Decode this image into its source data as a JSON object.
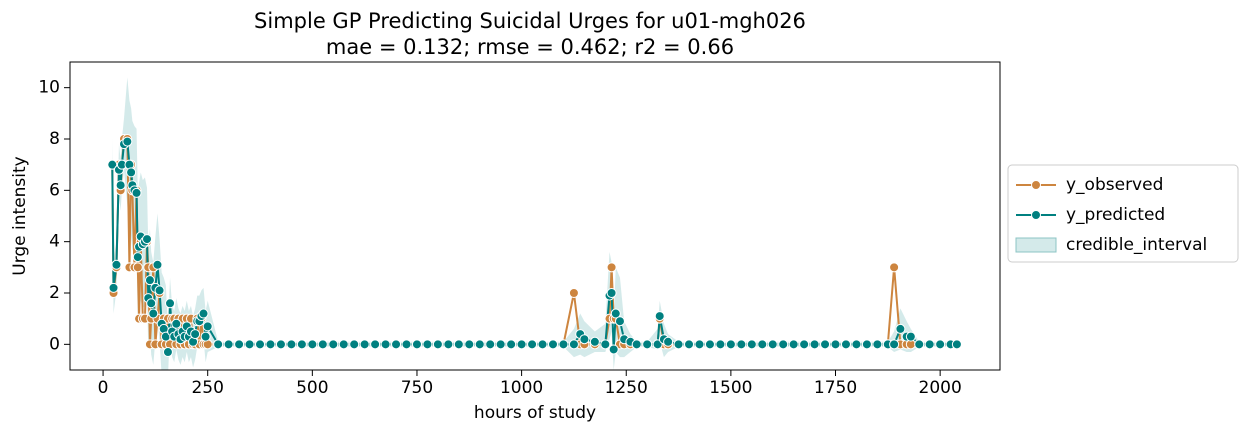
{
  "chart_data": {
    "type": "line",
    "title": "Simple GP Predicting Suicidal Urges for u01-mgh026",
    "subtitle": "mae = 0.132; rmse = 0.462; r2 = 0.66",
    "xlabel": "hours of study",
    "ylabel": "Urge intensity",
    "xlim": [
      -79,
      2143
    ],
    "ylim": [
      -1,
      11
    ],
    "xticks": [
      0,
      250,
      500,
      750,
      1000,
      1250,
      1500,
      1750,
      2000
    ],
    "yticks": [
      0,
      2,
      4,
      6,
      8,
      10
    ],
    "legend": "outside right",
    "x": [
      22,
      25,
      32,
      38,
      42,
      45,
      50,
      58,
      63,
      67,
      70,
      75,
      80,
      83,
      86,
      90,
      95,
      100,
      105,
      108,
      112,
      115,
      120,
      125,
      130,
      135,
      140,
      145,
      150,
      155,
      160,
      165,
      170,
      175,
      180,
      185,
      190,
      195,
      200,
      205,
      210,
      215,
      220,
      225,
      230,
      235,
      240,
      245,
      250,
      275,
      300,
      325,
      350,
      375,
      400,
      425,
      450,
      475,
      500,
      525,
      550,
      575,
      600,
      625,
      650,
      675,
      700,
      725,
      750,
      775,
      800,
      825,
      850,
      875,
      900,
      925,
      950,
      975,
      1000,
      1025,
      1050,
      1075,
      1100,
      1125,
      1140,
      1150,
      1175,
      1200,
      1210,
      1215,
      1220,
      1225,
      1235,
      1245,
      1260,
      1275,
      1300,
      1325,
      1330,
      1340,
      1350,
      1375,
      1400,
      1425,
      1450,
      1475,
      1500,
      1525,
      1550,
      1575,
      1600,
      1625,
      1650,
      1675,
      1700,
      1725,
      1750,
      1775,
      1800,
      1825,
      1850,
      1875,
      1890,
      1905,
      1920,
      1930,
      1950,
      1975,
      2000,
      2025,
      2040
    ],
    "series": [
      {
        "name": "y_observed",
        "color": "#cd853f",
        "values": [
          7,
          2,
          3,
          7,
          6,
          7,
          8,
          8,
          3,
          7,
          6,
          3,
          6,
          3,
          1,
          4,
          1,
          1,
          4,
          3,
          0,
          1,
          3,
          0,
          1,
          2,
          0,
          1,
          0,
          1,
          0,
          1,
          1,
          0,
          1,
          0,
          1,
          0,
          1,
          0,
          1,
          0,
          0,
          1,
          0,
          1,
          0,
          0,
          0,
          0,
          0,
          0,
          0,
          0,
          0,
          0,
          0,
          0,
          0,
          0,
          0,
          0,
          0,
          0,
          0,
          0,
          0,
          0,
          0,
          0,
          0,
          0,
          0,
          0,
          0,
          0,
          0,
          0,
          0,
          0,
          0,
          0,
          0,
          2,
          0,
          0,
          0,
          0,
          1,
          3,
          1,
          1,
          0,
          0,
          0,
          0,
          0,
          0,
          1,
          0,
          0,
          0,
          0,
          0,
          0,
          0,
          0,
          0,
          0,
          0,
          0,
          0,
          0,
          0,
          0,
          0,
          0,
          0,
          0,
          0,
          0,
          0,
          3,
          0,
          0,
          0,
          0,
          0,
          0,
          0,
          0
        ]
      },
      {
        "name": "y_predicted",
        "color": "#008080",
        "values": [
          7,
          2.2,
          3.1,
          6.8,
          6.2,
          7,
          7.8,
          7.9,
          7,
          6.7,
          6.2,
          6,
          5.9,
          3.4,
          3.8,
          4.2,
          3.9,
          4,
          4.1,
          1.8,
          2.5,
          1.6,
          1.2,
          2.2,
          3.1,
          2.1,
          0.8,
          0.6,
          0.3,
          -0.3,
          1.6,
          0.5,
          0.3,
          0.8,
          0.4,
          0.2,
          0.5,
          0.3,
          0.7,
          0.3,
          0.5,
          0.1,
          0.4,
          0.9,
          0.9,
          1.1,
          1.2,
          0.3,
          0.7,
          0,
          0,
          0,
          0,
          0,
          0,
          0,
          0,
          0,
          0,
          0,
          0,
          0,
          0,
          0,
          0,
          0,
          0,
          0,
          0,
          0,
          0,
          0,
          0,
          0,
          0,
          0,
          0,
          0,
          0,
          0,
          0,
          0,
          0,
          0,
          0.4,
          0.2,
          0.1,
          0,
          1.9,
          2.0,
          -0.2,
          1.2,
          0.9,
          0.2,
          0.1,
          0,
          0,
          0,
          1.1,
          0.2,
          0.1,
          0,
          0,
          0,
          0,
          0,
          0,
          0,
          0,
          0,
          0,
          0,
          0,
          0,
          0,
          0,
          0,
          0,
          0,
          0,
          0,
          0,
          0,
          0.6,
          0.3,
          0.3,
          0,
          0,
          0,
          0,
          0
        ]
      }
    ],
    "interval": {
      "name": "credible_interval",
      "color": "#b0d8d8",
      "lower": [
        6,
        1.2,
        2.1,
        5.8,
        5.2,
        6,
        6.8,
        5.4,
        4.5,
        4.2,
        3.7,
        3.5,
        3.4,
        0.9,
        1.3,
        1.7,
        1.4,
        1.5,
        2.1,
        -0.2,
        0.5,
        -0.4,
        -0.8,
        0.2,
        1.1,
        0.1,
        -1.2,
        -1.4,
        -1.7,
        -1.3,
        0.6,
        -0.5,
        -0.7,
        -0.2,
        -0.6,
        -0.8,
        -0.5,
        -0.7,
        -0.3,
        -0.7,
        -0.5,
        -0.9,
        -0.6,
        -0.1,
        -0.1,
        0.1,
        0.2,
        -0.7,
        -0.3,
        -0.1,
        -0.1,
        -0.1,
        -0.1,
        -0.1,
        -0.1,
        -0.1,
        -0.1,
        -0.1,
        -0.1,
        -0.1,
        -0.1,
        -0.1,
        -0.1,
        -0.1,
        -0.1,
        -0.1,
        -0.1,
        -0.1,
        -0.1,
        -0.1,
        -0.1,
        -0.1,
        -0.1,
        -0.1,
        -0.1,
        -0.1,
        -0.1,
        -0.1,
        -0.1,
        -0.1,
        -0.1,
        -0.1,
        -0.1,
        -0.5,
        -0.4,
        -0.5,
        -0.3,
        -0.3,
        0.2,
        0.5,
        -1.0,
        -0.3,
        -0.5,
        -0.5,
        -0.3,
        -0.1,
        -0.1,
        -0.2,
        0.1,
        -0.5,
        -0.3,
        -0.1,
        -0.1,
        -0.1,
        -0.1,
        -0.1,
        -0.1,
        -0.1,
        -0.1,
        -0.1,
        -0.1,
        -0.1,
        -0.1,
        -0.1,
        -0.1,
        -0.1,
        -0.1,
        -0.1,
        -0.1,
        -0.1,
        -0.1,
        -0.1,
        -0.3,
        -0.2,
        -0.3,
        -0.3,
        -0.1,
        -0.1,
        -0.1,
        -0.1,
        -0.1
      ],
      "upper": [
        8,
        3.2,
        4.1,
        7.8,
        7.2,
        8,
        8.8,
        10.4,
        9.5,
        9.2,
        8.7,
        8.5,
        8.4,
        5.9,
        6.3,
        6.7,
        6.4,
        6.5,
        6.1,
        3.8,
        4.5,
        3.6,
        3.2,
        4.2,
        5.1,
        4.1,
        2.8,
        2.6,
        2.3,
        0.7,
        2.6,
        1.5,
        1.3,
        1.8,
        1.4,
        1.2,
        1.5,
        1.3,
        1.7,
        1.3,
        1.5,
        1.1,
        1.4,
        1.9,
        1.9,
        2.1,
        2.2,
        1.3,
        1.7,
        0.1,
        0.1,
        0.1,
        0.1,
        0.1,
        0.1,
        0.1,
        0.1,
        0.1,
        0.1,
        0.1,
        0.1,
        0.1,
        0.1,
        0.1,
        0.1,
        0.1,
        0.1,
        0.1,
        0.1,
        0.1,
        0.1,
        0.1,
        0.1,
        0.1,
        0.1,
        0.1,
        0.1,
        0.1,
        0.1,
        0.1,
        0.1,
        0.1,
        0.1,
        0.6,
        1.2,
        0.9,
        0.5,
        0.8,
        3.6,
        3.2,
        1.0,
        3.0,
        2.6,
        0.9,
        0.4,
        0.1,
        0.1,
        0.6,
        1.7,
        0.8,
        0.4,
        0.1,
        0.1,
        0.1,
        0.1,
        0.1,
        0.1,
        0.1,
        0.1,
        0.1,
        0.1,
        0.1,
        0.1,
        0.1,
        0.1,
        0.1,
        0.1,
        0.1,
        0.1,
        0.1,
        0.1,
        0.1,
        0.5,
        1.4,
        0.9,
        0.6,
        0.1,
        0.1,
        0.1,
        0.1,
        0.1
      ]
    }
  }
}
